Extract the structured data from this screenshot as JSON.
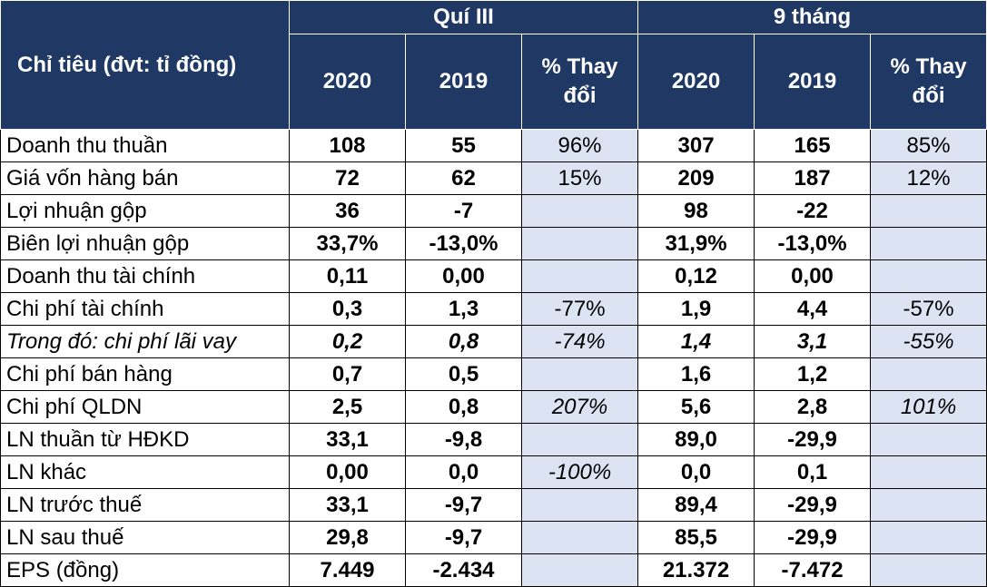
{
  "header": {
    "label": "Chỉ tiêu (đvt: tỉ đồng)",
    "group_q3": "Quí III",
    "group_9m": "9 tháng",
    "y2020": "2020",
    "y2019": "2019",
    "pct_line1": "% Thay",
    "pct_line2": "đổi"
  },
  "colors": {
    "header_bg": "#1f3864",
    "pct_cell_bg": "#dce4f3"
  },
  "rows": [
    {
      "label": "Doanh thu thuần",
      "q3_2020": "108",
      "q3_2019": "55",
      "q3_pct": "96%",
      "m9_2020": "307",
      "m9_2019": "165",
      "m9_pct": "85%"
    },
    {
      "label": "Giá vốn hàng bán",
      "q3_2020": "72",
      "q3_2019": "62",
      "q3_pct": "15%",
      "m9_2020": "209",
      "m9_2019": "187",
      "m9_pct": "12%"
    },
    {
      "label": "Lợi nhuận gộp",
      "q3_2020": "36",
      "q3_2019": "-7",
      "q3_pct": "",
      "m9_2020": "98",
      "m9_2019": "-22",
      "m9_pct": ""
    },
    {
      "label": "Biên lợi nhuận gộp",
      "q3_2020": "33,7%",
      "q3_2019": "-13,0%",
      "q3_pct": "",
      "m9_2020": "31,9%",
      "m9_2019": "-13,0%",
      "m9_pct": ""
    },
    {
      "label": "Doanh thu tài chính",
      "q3_2020": "0,11",
      "q3_2019": "0,00",
      "q3_pct": "",
      "m9_2020": "0,12",
      "m9_2019": "0,00",
      "m9_pct": ""
    },
    {
      "label": "Chi phí tài chính",
      "q3_2020": "0,3",
      "q3_2019": "1,3",
      "q3_pct": "-77%",
      "m9_2020": "1,9",
      "m9_2019": "4,4",
      "m9_pct": "-57%"
    },
    {
      "label": "Trong đó: chi phí lãi vay",
      "q3_2020": "0,2",
      "q3_2019": "0,8",
      "q3_pct": "-74%",
      "m9_2020": "1,4",
      "m9_2019": "3,1",
      "m9_pct": "-55%"
    },
    {
      "label": "Chi phí bán hàng",
      "q3_2020": "0,7",
      "q3_2019": "0,5",
      "q3_pct": "",
      "m9_2020": "1,6",
      "m9_2019": "1,2",
      "m9_pct": ""
    },
    {
      "label": "Chi phí QLDN",
      "q3_2020": "2,5",
      "q3_2019": "0,8",
      "q3_pct": "207%",
      "m9_2020": "5,6",
      "m9_2019": "2,8",
      "m9_pct": "101%"
    },
    {
      "label": "LN thuần từ HĐKD",
      "q3_2020": "33,1",
      "q3_2019": "-9,8",
      "q3_pct": "",
      "m9_2020": "89,0",
      "m9_2019": "-29,9",
      "m9_pct": ""
    },
    {
      "label": "LN khác",
      "q3_2020": "0,00",
      "q3_2019": "0,0",
      "q3_pct": "-100%",
      "m9_2020": "0,0",
      "m9_2019": "0,1",
      "m9_pct": ""
    },
    {
      "label": "LN trước thuế",
      "q3_2020": "33,1",
      "q3_2019": "-9,7",
      "q3_pct": "",
      "m9_2020": "89,4",
      "m9_2019": "-29,9",
      "m9_pct": ""
    },
    {
      "label": "LN sau thuế",
      "q3_2020": "29,8",
      "q3_2019": "-9,7",
      "q3_pct": "",
      "m9_2020": "85,5",
      "m9_2019": "-29,9",
      "m9_pct": ""
    },
    {
      "label": "EPS (đồng)",
      "q3_2020": "7.449",
      "q3_2019": "-2.434",
      "q3_pct": "",
      "m9_2020": "21.372",
      "m9_2019": "-7.472",
      "m9_pct": ""
    }
  ]
}
